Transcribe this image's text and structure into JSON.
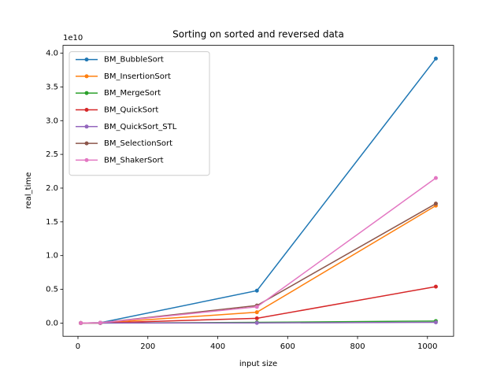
{
  "chart_data": {
    "type": "line",
    "title": "Sorting on sorted and reversed data",
    "x_label": "input size",
    "y_label": "real_time",
    "y_offset_label": "1e10",
    "x": [
      8,
      64,
      512,
      1024
    ],
    "series": [
      {
        "name": "BM_BubbleSort",
        "color": "#1f77b4",
        "values": [
          0,
          0.005,
          0.48,
          3.92
        ]
      },
      {
        "name": "BM_InsertionSort",
        "color": "#ff7f0e",
        "values": [
          0,
          0.002,
          0.16,
          1.74
        ]
      },
      {
        "name": "BM_MergeSort",
        "color": "#2ca02c",
        "values": [
          0,
          0.0005,
          0.01,
          0.03
        ]
      },
      {
        "name": "BM_QuickSort",
        "color": "#d62728",
        "values": [
          0,
          0.001,
          0.07,
          0.54
        ]
      },
      {
        "name": "BM_QuickSort_STL",
        "color": "#9467bd",
        "values": [
          0,
          0.0002,
          0.002,
          0.01
        ]
      },
      {
        "name": "BM_SelectionSort",
        "color": "#8c564b",
        "values": [
          0,
          0.004,
          0.26,
          1.77
        ]
      },
      {
        "name": "BM_ShakerSort",
        "color": "#e377c2",
        "values": [
          0,
          0.004,
          0.24,
          2.15
        ]
      }
    ],
    "xlim": [
      -42.8,
      1074.8
    ],
    "ylim": [
      -0.196,
      4.116
    ],
    "xticks": [
      0,
      200,
      400,
      600,
      800,
      1000
    ],
    "yticks": [
      {
        "value": 0,
        "label": "0.0"
      },
      {
        "value": 0.5,
        "label": "0.5"
      },
      {
        "value": 1,
        "label": "1.0"
      },
      {
        "value": 1.5,
        "label": "1.5"
      },
      {
        "value": 2,
        "label": "2.0"
      },
      {
        "value": 2.5,
        "label": "2.5"
      },
      {
        "value": 3,
        "label": "3.0"
      },
      {
        "value": 3.5,
        "label": "3.5"
      },
      {
        "value": 4,
        "label": "4.0"
      }
    ],
    "legend": "upper left",
    "grid": false
  }
}
